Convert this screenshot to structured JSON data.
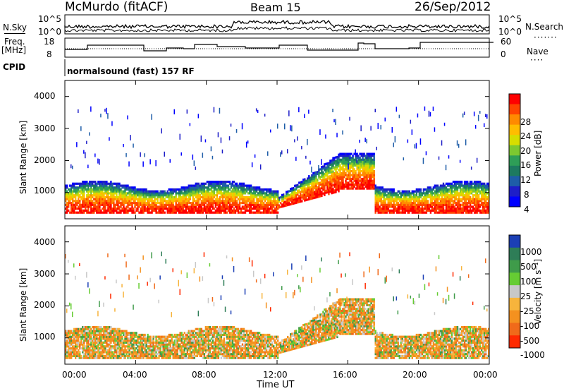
{
  "header": {
    "station": "McMurdo (fitACF)",
    "beam": "Beam 15",
    "date": "26/Sep/2012"
  },
  "top_panels": {
    "nsky_label": "N.Sky",
    "nsky_ticks": [
      "10^5",
      "10^0"
    ],
    "nsearch_label": "N.Search",
    "nsearch_ticks": [
      "10^5",
      "10^0"
    ],
    "freq_label": "Freq.",
    "freq_unit": "[MHz]",
    "freq_ticks": [
      "18",
      "8"
    ],
    "nave_label": "Nave",
    "nave_ticks": [
      "60",
      "0"
    ],
    "cpid_label": "CPID",
    "cpid_value": "normalsound (fast) 157 RF"
  },
  "chart_data": [
    {
      "panel": "power",
      "type": "heatmap",
      "ylabel": "Slant Range [km]",
      "ylim": [
        180,
        4500
      ],
      "yticks": [
        "1000",
        "2000",
        "3000",
        "4000"
      ],
      "xlim": [
        0,
        24
      ],
      "colorbar_label": "Power [dB]",
      "colorbar_ticks": [
        "28",
        "24",
        "20",
        "16",
        "12",
        "8",
        "4"
      ],
      "colorbar_colors": [
        "#ff0000",
        "#ff4400",
        "#ff8a00",
        "#ffbd00",
        "#d7dd00",
        "#7cc830",
        "#2e9e57",
        "#1d7a60",
        "#1e5da8",
        "#1e1ec8",
        "#0000ff"
      ]
    },
    {
      "panel": "velocity",
      "type": "heatmap",
      "ylabel": "Slant Range [km]",
      "ylim": [
        180,
        4500
      ],
      "yticks": [
        "1000",
        "2000",
        "3000",
        "4000"
      ],
      "xlim": [
        0,
        24
      ],
      "colorbar_label": "Velocity [m s⁻¹]",
      "colorbar_ticks": [
        "1000",
        "500",
        "100",
        "25",
        "-25",
        "-100",
        "-500",
        "-1000"
      ],
      "colorbar_colors": [
        "#1b3fb5",
        "#2e7d57",
        "#3f9b4a",
        "#66cc33",
        "#c8c8c8",
        "#f7b43c",
        "#f4911f",
        "#f06a1a",
        "#ff2a00"
      ]
    }
  ],
  "xaxis": {
    "ticks": [
      "00:00",
      "04:00",
      "08:00",
      "12:00",
      "16:00",
      "20:00",
      "00:00"
    ],
    "label": "Time UT"
  }
}
